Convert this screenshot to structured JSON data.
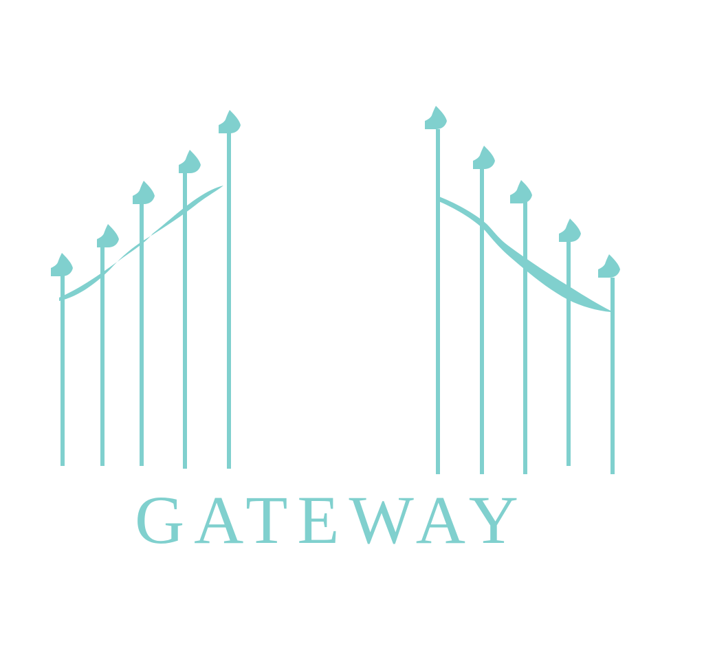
{
  "logo": {
    "wordmark": "GATEWAY",
    "color": "#80d0ce",
    "background": "#ffffff"
  }
}
